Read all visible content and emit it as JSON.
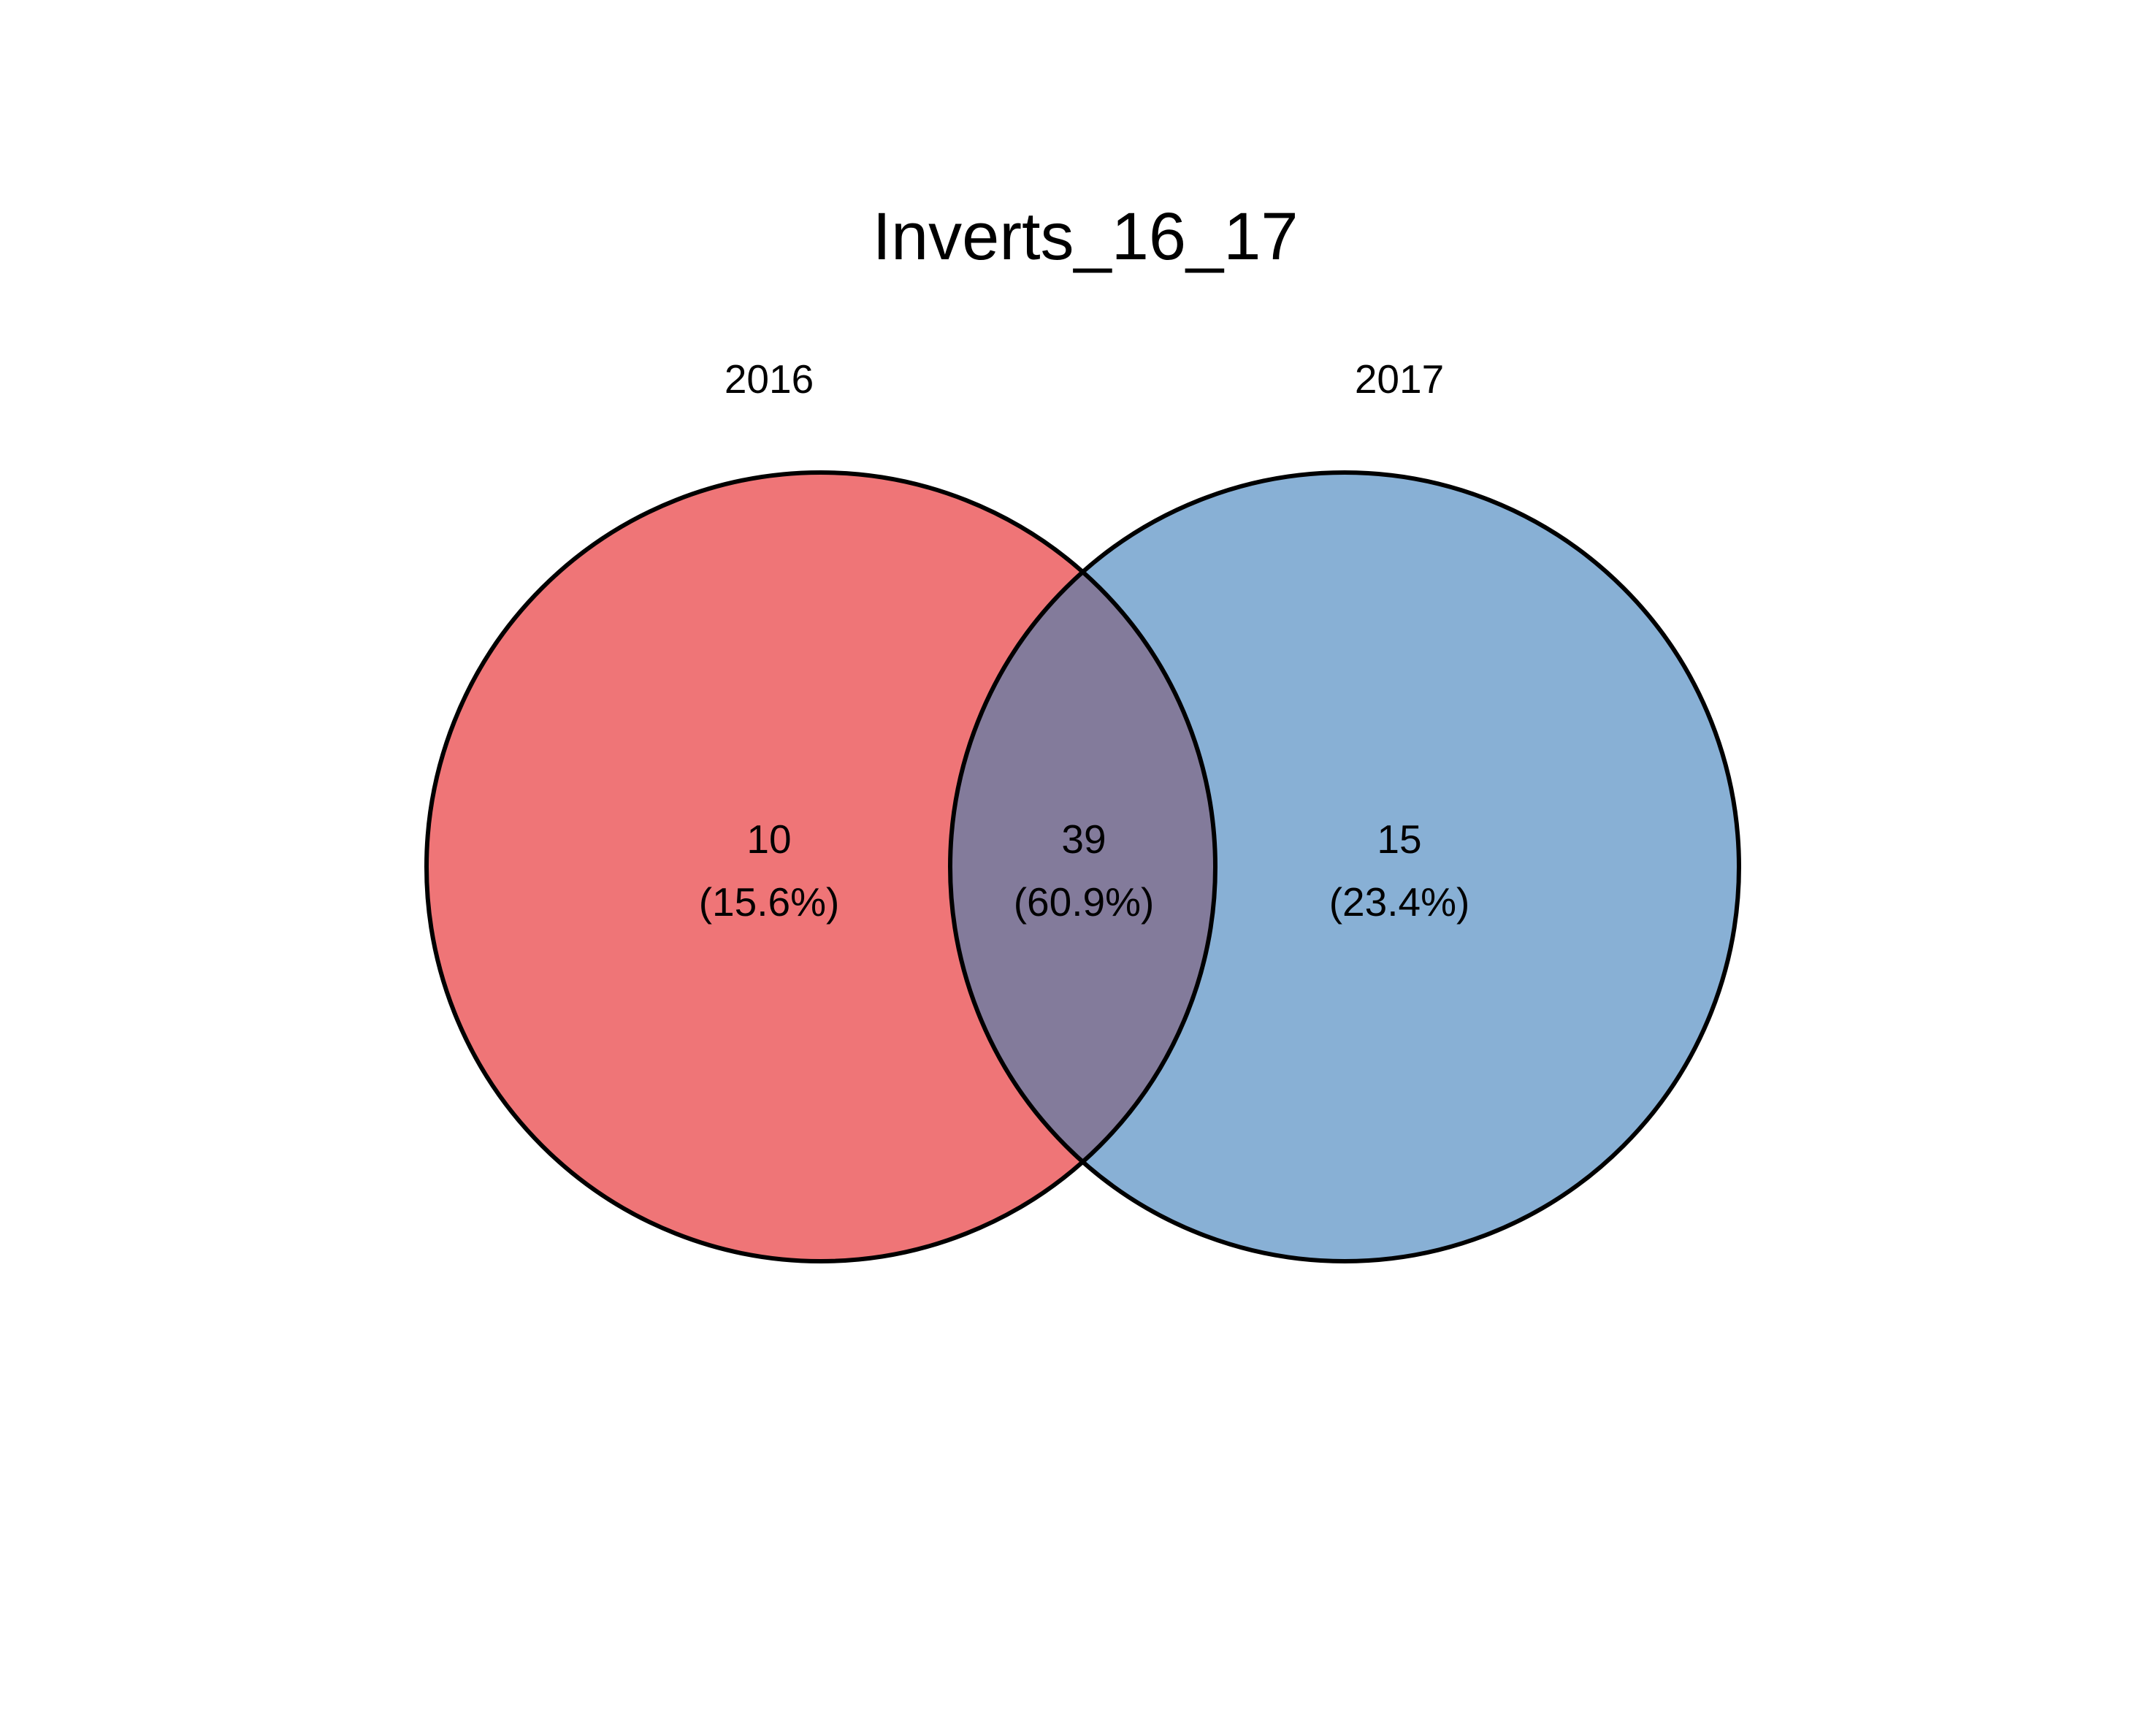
{
  "title": "Inverts_16_17",
  "sets": [
    {
      "label": "2016",
      "color": "#EF7577"
    },
    {
      "label": "2017",
      "color": "#88B0D5"
    }
  ],
  "overlap_color": "#837B9B",
  "outline_color": "#000000",
  "regions": [
    {
      "id": "only-2016",
      "count": "10",
      "percent": "(15.6%)"
    },
    {
      "id": "both",
      "count": "39",
      "percent": "(60.9%)"
    },
    {
      "id": "only-2017",
      "count": "15",
      "percent": "(23.4%)"
    }
  ]
}
